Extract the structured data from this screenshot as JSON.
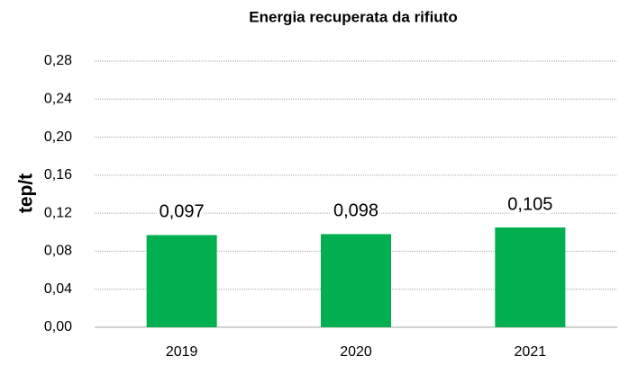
{
  "chart_data": {
    "type": "bar",
    "title": "Energia recuperata da rifiuto",
    "y_label": "tep/t",
    "categories": [
      "2019",
      "2020",
      "2021"
    ],
    "values": [
      0.097,
      0.098,
      0.105
    ],
    "value_labels": [
      "0,097",
      "0,098",
      "0,105"
    ],
    "color": "#00b050",
    "ylim": [
      0,
      0.28
    ],
    "yticks": [
      {
        "value": 0,
        "label": "0,00"
      },
      {
        "value": 0.04,
        "label": "0,04"
      },
      {
        "value": 0.08,
        "label": "0,08"
      },
      {
        "value": 0.12,
        "label": "0,12"
      },
      {
        "value": 0.16,
        "label": "0,16"
      },
      {
        "value": 0.2,
        "label": "0,20"
      },
      {
        "value": 0.24,
        "label": "0,24"
      },
      {
        "value": 0.28,
        "label": "0,28"
      }
    ],
    "grid": true
  }
}
